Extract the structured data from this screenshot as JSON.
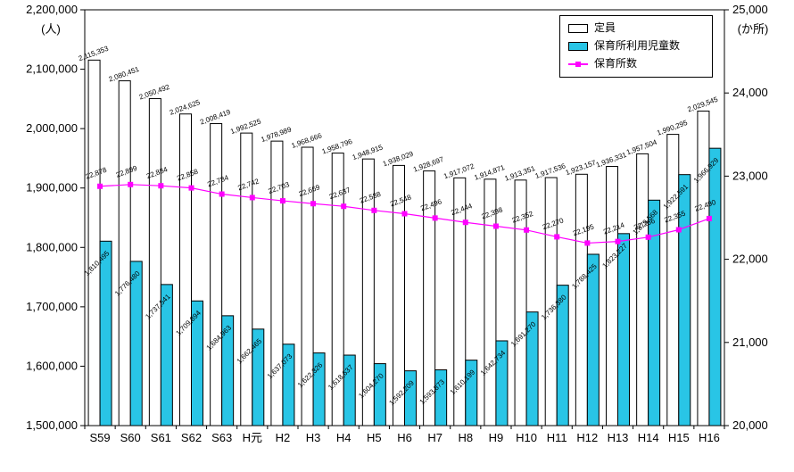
{
  "chart_data": {
    "type": "bar",
    "subtype": "grouped-bars-with-line",
    "title": "",
    "categories": [
      "S59",
      "S60",
      "S61",
      "S62",
      "S63",
      "H元",
      "H2",
      "H3",
      "H4",
      "H5",
      "H6",
      "H7",
      "H8",
      "H9",
      "H10",
      "H11",
      "H12",
      "H13",
      "H14",
      "H15",
      "H16"
    ],
    "left_axis": {
      "label": "(人)",
      "min": 1500000,
      "max": 2200000,
      "step": 100000
    },
    "right_axis": {
      "label": "(か所)",
      "min": 20000,
      "max": 25000,
      "step": 1000
    },
    "grid": false,
    "legend_position": "top-right",
    "series": [
      {
        "name": "定員",
        "type": "bar",
        "axis": "left",
        "color": "#FFFFFF",
        "values": [
          2115353,
          2080451,
          2050492,
          2024625,
          2008419,
          1992525,
          1978989,
          1968666,
          1958796,
          1948915,
          1938029,
          1928697,
          1917072,
          1914871,
          1913351,
          1917536,
          1923157,
          1936331,
          1957504,
          1990295,
          2029545
        ]
      },
      {
        "name": "保育所利用児童数",
        "type": "bar",
        "axis": "left",
        "color": "#29C5E6",
        "values": [
          1810495,
          1776480,
          1737541,
          1709894,
          1684963,
          1662465,
          1637073,
          1622326,
          1618637,
          1604270,
          1592209,
          1593873,
          1610199,
          1642734,
          1691270,
          1736380,
          1788425,
          1823227,
          1879568,
          1922591,
          1966929
        ]
      },
      {
        "name": "保育所数",
        "type": "line",
        "axis": "right",
        "color": "#FF00FF",
        "values": [
          22878,
          22899,
          22884,
          22858,
          22784,
          22742,
          22703,
          22669,
          22637,
          22588,
          22548,
          22496,
          22444,
          22398,
          22352,
          22270,
          22195,
          22214,
          22266,
          22355,
          22490
        ]
      }
    ]
  }
}
